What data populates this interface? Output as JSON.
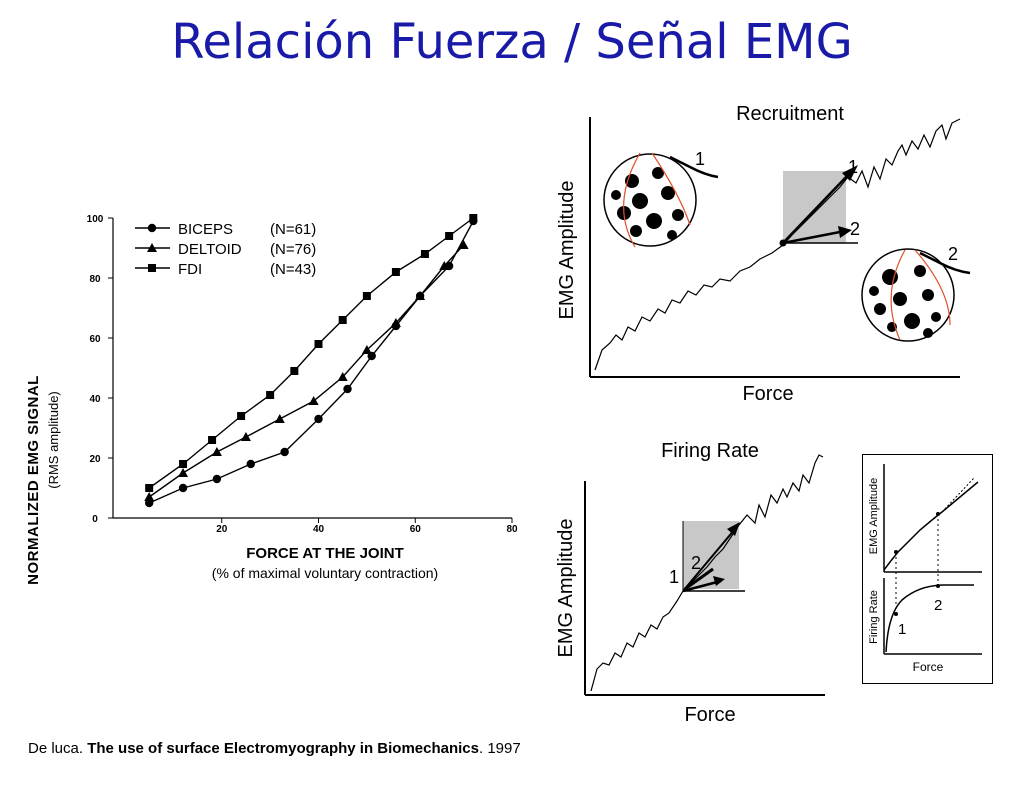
{
  "title": "Relación Fuerza / Señal EMG",
  "citation": {
    "author": "De luca.",
    "work": "The use of surface Electromyography in Biomechanics",
    "year": ". 1997"
  },
  "chart_data": [
    {
      "type": "line",
      "xlabel": "FORCE AT THE JOINT",
      "xlabel_sub": "(% of maximal voluntary contraction)",
      "ylabel": "NORMALIZED EMG SIGNAL",
      "ylabel_sub": "(RMS amplitude)",
      "xlim": [
        0,
        80
      ],
      "ylim": [
        0,
        100
      ],
      "xticks": [
        "20",
        "40",
        "60",
        "80"
      ],
      "yticks": [
        "0",
        "20",
        "40",
        "60",
        "80",
        "100"
      ],
      "legend_position": "top-left",
      "grid": false,
      "series": [
        {
          "name": "BICEPS",
          "n": "(N=61)",
          "marker": "circle",
          "x": [
            5,
            12,
            19,
            26,
            33,
            40,
            46,
            51,
            56,
            61,
            67,
            72
          ],
          "y": [
            5,
            10,
            13,
            18,
            22,
            33,
            43,
            54,
            64,
            74,
            84,
            99
          ]
        },
        {
          "name": "DELTOID",
          "n": "(N=76)",
          "marker": "triangle",
          "x": [
            5,
            12,
            19,
            25,
            32,
            39,
            45,
            50,
            56,
            61,
            66,
            70
          ],
          "y": [
            7,
            15,
            22,
            27,
            33,
            39,
            47,
            56,
            65,
            74,
            84,
            91
          ]
        },
        {
          "name": "FDI",
          "n": "(N=43)",
          "marker": "square",
          "x": [
            5,
            12,
            18,
            24,
            30,
            35,
            40,
            45,
            50,
            56,
            62,
            67,
            72
          ],
          "y": [
            10,
            18,
            26,
            34,
            41,
            49,
            58,
            66,
            74,
            82,
            88,
            94,
            100
          ]
        }
      ]
    },
    {
      "type": "diagram",
      "title": "Recruitment",
      "xlabel": "Force",
      "ylabel": "EMG Amplitude",
      "arrow_labels": [
        "1",
        "2"
      ],
      "unit_labels": [
        "1",
        "2"
      ]
    },
    {
      "type": "diagram",
      "title": "Firing Rate",
      "xlabel": "Force",
      "ylabel": "EMG Amplitude",
      "arrow_labels": [
        "1",
        "2"
      ]
    },
    {
      "type": "diagram",
      "top_ylabel": "EMG Amplitude",
      "bottom_ylabel": "Firing Rate",
      "xlabel": "Force",
      "point_labels": [
        "1",
        "2"
      ]
    }
  ]
}
